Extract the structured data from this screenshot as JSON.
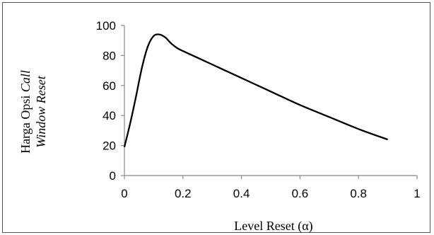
{
  "chart_data": {
    "type": "line",
    "xlabel": "Level Reset (α)",
    "ylabel": {
      "line1_plain": "Harga Opsi ",
      "line1_italic": "Call",
      "line2_italic": "Window Reset"
    },
    "xlim": [
      0,
      1
    ],
    "ylim": [
      0,
      100
    ],
    "xticks": [
      "0",
      "0.2",
      "0.4",
      "0.6",
      "0.8",
      "1"
    ],
    "yticks": [
      "0",
      "20",
      "40",
      "60",
      "80",
      "100"
    ],
    "grid": false,
    "legend": "none",
    "series": [
      {
        "color": "#000000",
        "x": [
          0,
          0.02,
          0.04,
          0.06,
          0.08,
          0.1,
          0.12,
          0.14,
          0.16,
          0.18,
          0.2,
          0.3,
          0.4,
          0.5,
          0.6,
          0.7,
          0.8,
          0.9
        ],
        "y": [
          19,
          35,
          53,
          72,
          86,
          93,
          94,
          92,
          88,
          85,
          83,
          74,
          65,
          56,
          47,
          39,
          31,
          24
        ]
      }
    ]
  }
}
